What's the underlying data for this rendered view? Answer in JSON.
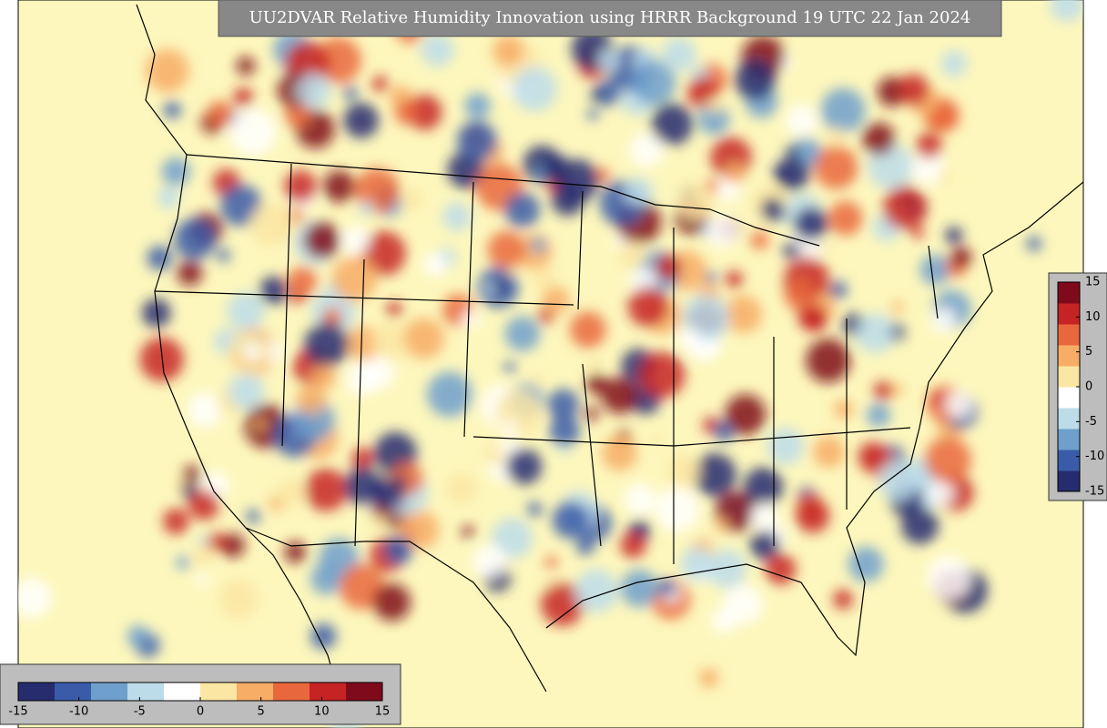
{
  "title": "UU2DVAR Relative Humidity Innovation using HRRR Background 19 UTC 22 Jan 2024",
  "colorbars": [
    {
      "orientation": "horizontal",
      "lim": [
        -15,
        15
      ],
      "ticks": [
        -15,
        -10,
        -5,
        0,
        5,
        10,
        15
      ]
    },
    {
      "orientation": "vertical",
      "lim": [
        -15,
        15
      ],
      "ticks": [
        -15,
        -10,
        -5,
        0,
        5,
        10,
        15
      ]
    }
  ],
  "colors": [
    "#262c6e",
    "#3a5ca8",
    "#6f9fcd",
    "#bcdcea",
    "#ffffff",
    "#fbe6a3",
    "#f7ad66",
    "#e9673d",
    "#c62324",
    "#7f0a1b"
  ]
}
